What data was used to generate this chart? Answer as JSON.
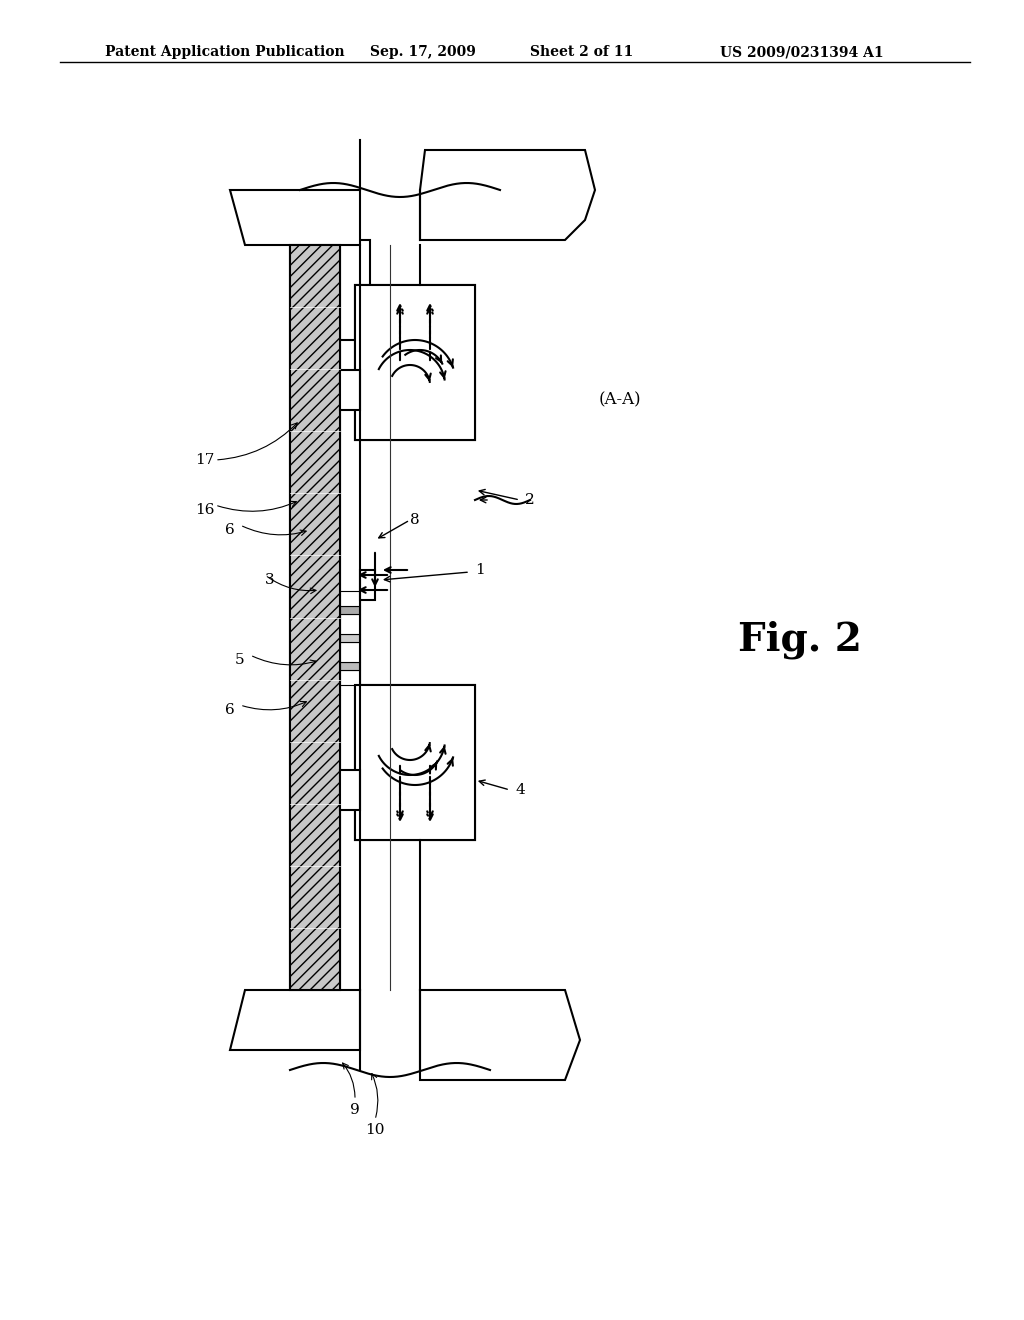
{
  "title": "Patent Application Publication",
  "date": "Sep. 17, 2009",
  "sheet": "Sheet 2 of 11",
  "patent_num": "US 2009/0231394 A1",
  "fig_label": "Fig. 2",
  "section_label": "(A-A)",
  "background": "#ffffff",
  "ink_color": "#000000",
  "gray_color": "#aaaaaa",
  "light_gray": "#cccccc",
  "hatching": "///"
}
